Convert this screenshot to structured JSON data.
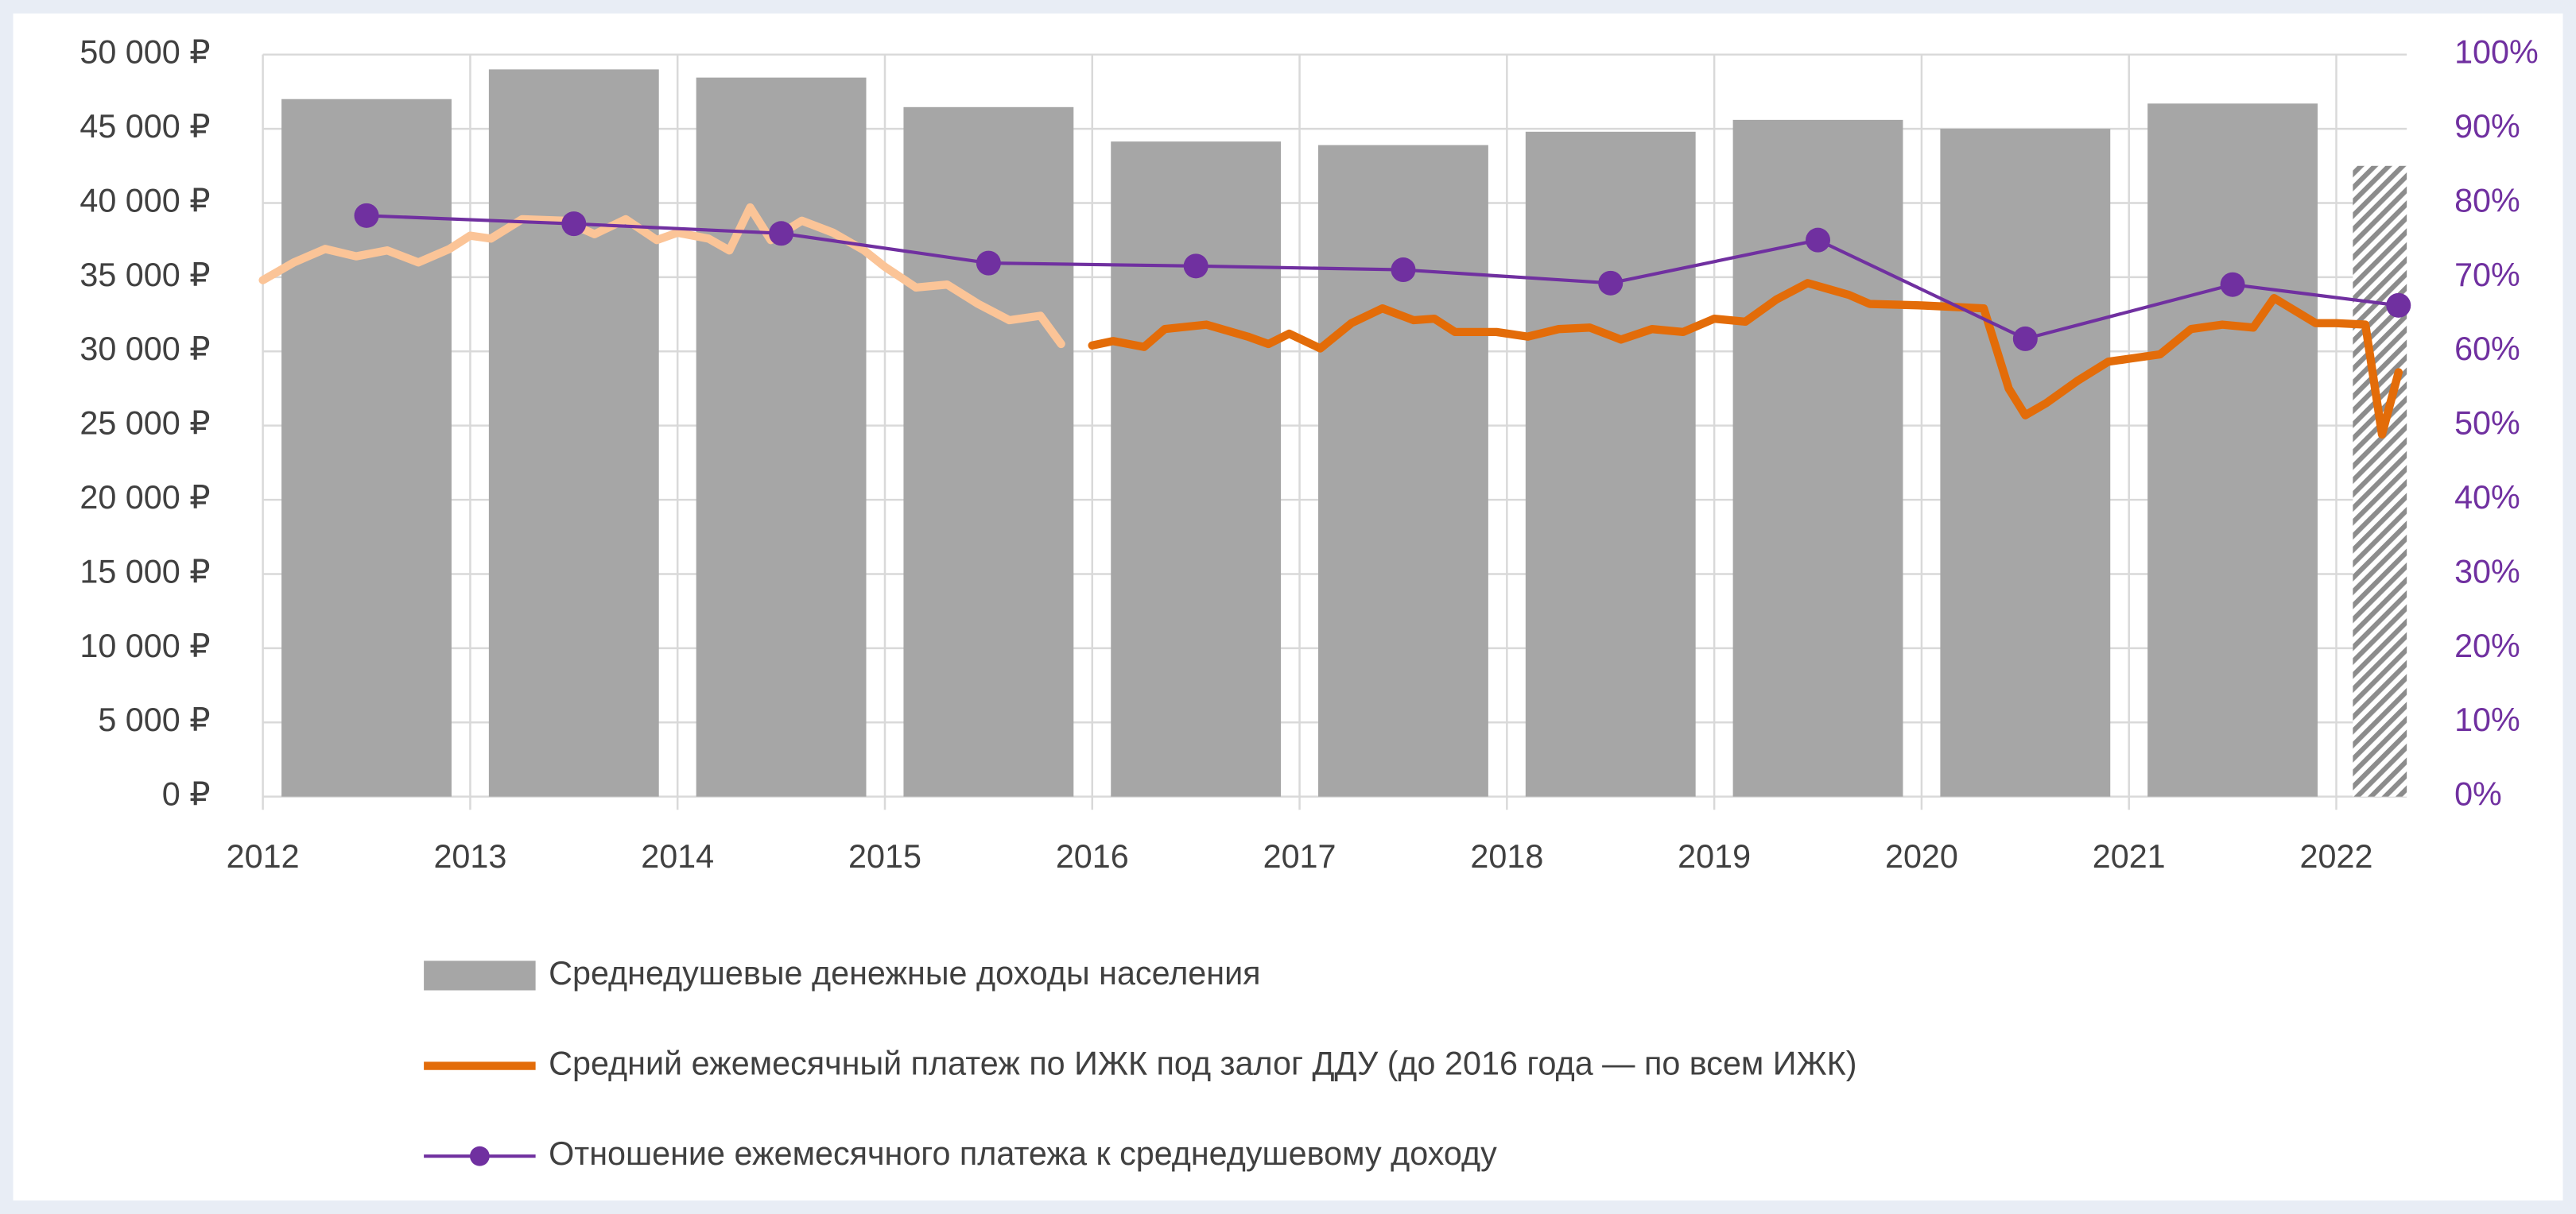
{
  "chart_data": {
    "type": "combo",
    "xlim": [
      2012,
      2022.34
    ],
    "xticks": [
      2012,
      2013,
      2014,
      2015,
      2016,
      2017,
      2018,
      2019,
      2020,
      2021,
      2022
    ],
    "ylim": [
      0,
      50000
    ],
    "yticks": [
      {
        "value": 0,
        "label": "0 ₽"
      },
      {
        "value": 5000,
        "label": "5 000 ₽"
      },
      {
        "value": 10000,
        "label": "10 000 ₽"
      },
      {
        "value": 15000,
        "label": "15 000 ₽"
      },
      {
        "value": 20000,
        "label": "20 000 ₽"
      },
      {
        "value": 25000,
        "label": "25 000 ₽"
      },
      {
        "value": 30000,
        "label": "30 000 ₽"
      },
      {
        "value": 35000,
        "label": "35 000 ₽"
      },
      {
        "value": 40000,
        "label": "40 000 ₽"
      },
      {
        "value": 45000,
        "label": "45 000 ₽"
      },
      {
        "value": 50000,
        "label": "50 000 ₽"
      }
    ],
    "y2lim": [
      0,
      100
    ],
    "y2ticks": [
      {
        "value": 0,
        "label": "0%"
      },
      {
        "value": 10,
        "label": "10%"
      },
      {
        "value": 20,
        "label": "20%"
      },
      {
        "value": 30,
        "label": "30%"
      },
      {
        "value": 40,
        "label": "40%"
      },
      {
        "value": 50,
        "label": "50%"
      },
      {
        "value": 60,
        "label": "60%"
      },
      {
        "value": 70,
        "label": "70%"
      },
      {
        "value": 80,
        "label": "80%"
      },
      {
        "value": 90,
        "label": "90%"
      },
      {
        "value": 100,
        "label": "100%"
      }
    ],
    "grid": true,
    "legend": "bottom",
    "series": [
      {
        "name": "Среднедушевые денежные доходы населения",
        "type": "bar",
        "color": "#a6a6a6",
        "x": [
          2012.5,
          2013.5,
          2014.5,
          2015.5,
          2016.5,
          2017.5,
          2018.5,
          2019.5,
          2020.5,
          2021.5,
          2022.21
        ],
        "values": [
          47000,
          49000,
          48450,
          46460,
          44140,
          43900,
          44800,
          45600,
          45000,
          46700,
          42500
        ],
        "hatched": [
          false,
          false,
          false,
          false,
          false,
          false,
          false,
          false,
          false,
          false,
          true
        ]
      },
      {
        "name": "Средний ежемесячный платеж по ИЖК под залог ДДУ (до 2016 года — по всем ИЖК)",
        "type": "line",
        "color": "#e36c09",
        "early_color": "#fbc497",
        "early_until": 2016,
        "x": [
          2012.0,
          2012.15,
          2012.3,
          2012.45,
          2012.6,
          2012.75,
          2012.9,
          2013.0,
          2013.1,
          2013.25,
          2013.45,
          2013.6,
          2013.75,
          2013.9,
          2014.0,
          2014.15,
          2014.25,
          2014.35,
          2014.45,
          2014.6,
          2014.75,
          2014.9,
          2015.0,
          2015.15,
          2015.3,
          2015.45,
          2015.6,
          2015.75,
          2015.85,
          2016.0,
          2016.1,
          2016.25,
          2016.35,
          2016.55,
          2016.75,
          2016.85,
          2016.95,
          2017.1,
          2017.25,
          2017.4,
          2017.55,
          2017.65,
          2017.75,
          2017.95,
          2018.1,
          2018.25,
          2018.4,
          2018.55,
          2018.7,
          2018.85,
          2019.0,
          2019.15,
          2019.3,
          2019.45,
          2019.55,
          2019.65,
          2019.75,
          2020.0,
          2020.3,
          2020.42,
          2020.5,
          2020.6,
          2020.75,
          2020.9,
          2021.0,
          2021.15,
          2021.3,
          2021.45,
          2021.6,
          2021.7,
          2021.9,
          2022.0,
          2022.14,
          2022.22,
          2022.3
        ],
        "values": [
          34800,
          36000,
          36900,
          36400,
          36800,
          36000,
          36900,
          37800,
          37600,
          38900,
          38800,
          37900,
          38900,
          37500,
          38000,
          37600,
          36800,
          39700,
          37500,
          38800,
          38000,
          36800,
          35700,
          34300,
          34500,
          33200,
          32100,
          32400,
          30500,
          30400,
          30700,
          30300,
          31500,
          31800,
          31000,
          30500,
          31200,
          30200,
          31900,
          32900,
          32100,
          32200,
          31300,
          31300,
          31000,
          31500,
          31600,
          30800,
          31500,
          31300,
          32200,
          32000,
          33500,
          34600,
          34200,
          33800,
          33200,
          33100,
          32900,
          27500,
          25700,
          26500,
          28000,
          29300,
          29500,
          29800,
          31500,
          31800,
          31600,
          33600,
          31900,
          31900,
          31800,
          24400,
          28600
        ]
      },
      {
        "name": "Отношение ежемесячного платежа к среднедушевому доходу",
        "type": "line",
        "axis": "y2",
        "markers": true,
        "color": "#7030a0",
        "x": [
          2012.5,
          2013.5,
          2014.5,
          2015.5,
          2016.5,
          2017.5,
          2018.5,
          2019.5,
          2020.5,
          2021.5,
          2022.3
        ],
        "values": [
          78.3,
          77.2,
          75.9,
          71.9,
          71.5,
          71.0,
          69.2,
          75.0,
          61.7,
          69.0,
          66.2
        ]
      }
    ]
  }
}
